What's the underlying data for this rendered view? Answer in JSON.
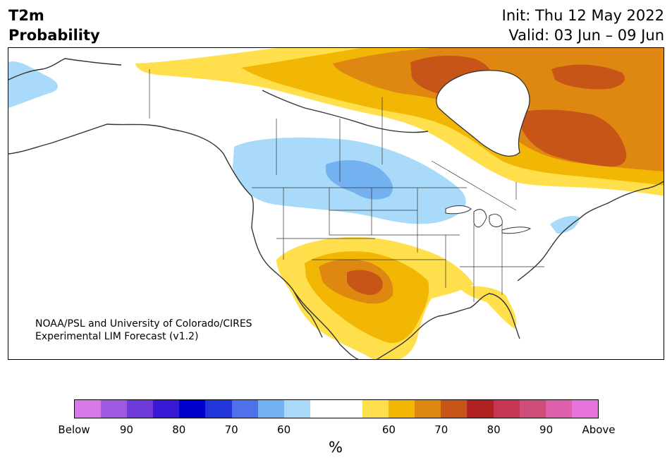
{
  "header": {
    "title_line1": "T2m",
    "title_line2": "Probability",
    "init": "Init: Thu 12 May 2022",
    "valid": "Valid: 03 Jun – 09 Jun"
  },
  "map": {
    "credit_line1": "NOAA/PSL and University of Colorado/CIRES",
    "credit_line2": "Experimental LIM Forecast (v1.2)",
    "region": "North America",
    "colors": {
      "below_60": "#a9daf9",
      "below_70": "#73b1f1",
      "above_60": "#ffe04c",
      "above_65": "#f2b705",
      "above_70": "#de8711",
      "above_75": "#c85518",
      "land_outline": "#333333"
    }
  },
  "colorbar": {
    "unit": "%",
    "colors": [
      "#d679e9",
      "#9d5ae1",
      "#6d3ad9",
      "#3a19d6",
      "#0000cc",
      "#2336db",
      "#4e71ea",
      "#73b1f1",
      "#a9daf9",
      "#ffffff",
      "#ffffff",
      "#ffe04c",
      "#f2b705",
      "#de8711",
      "#c85518",
      "#b22222",
      "#c43653",
      "#cf4d79",
      "#de60ad",
      "#e673db"
    ],
    "tick_labels": [
      "Below",
      "90",
      "80",
      "70",
      "60",
      "60",
      "70",
      "80",
      "90",
      "Above"
    ]
  }
}
